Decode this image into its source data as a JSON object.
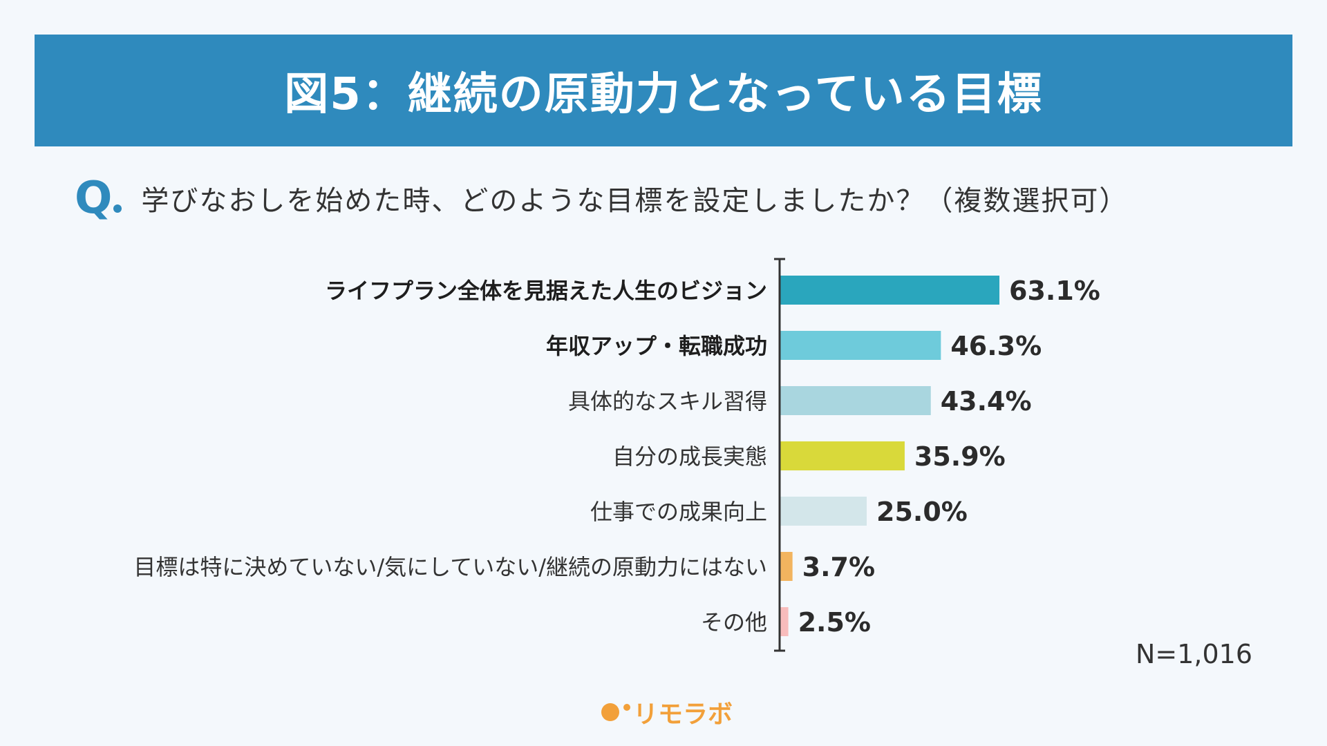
{
  "header": {
    "title": "図5：継続の原動力となっている目標"
  },
  "question": {
    "mark": "Q",
    "text": "学びなおしを始めた時、どのような目標を設定しましたか？（複数選択可）"
  },
  "note": "N=1,016",
  "logo": {
    "text": "リモラボ"
  },
  "chart_data": {
    "type": "bar",
    "orientation": "horizontal",
    "categories": [
      "ライフプラン全体を見据えた人生のビジョン",
      "年収アップ・転職成功",
      "具体的なスキル習得",
      "自分の成長実態",
      "仕事での成果向上",
      "目標は特に決めていない/気にしていない/継続の原動力にはない",
      "その他"
    ],
    "values": [
      63.1,
      46.3,
      43.4,
      35.9,
      25.0,
      3.7,
      2.5
    ],
    "value_labels": [
      "63.1%",
      "46.3%",
      "43.4%",
      "35.9%",
      "25.0%",
      "3.7%",
      "2.5%"
    ],
    "bold_categories": [
      true,
      true,
      false,
      false,
      false,
      false,
      false
    ],
    "colors": [
      "#2aa6bd",
      "#6ecbdb",
      "#a9d6df",
      "#d9d93a",
      "#d3e6ea",
      "#f2b45f",
      "#f8bcbc"
    ],
    "xlim": [
      0,
      100
    ],
    "grid": false,
    "legend": "none"
  }
}
